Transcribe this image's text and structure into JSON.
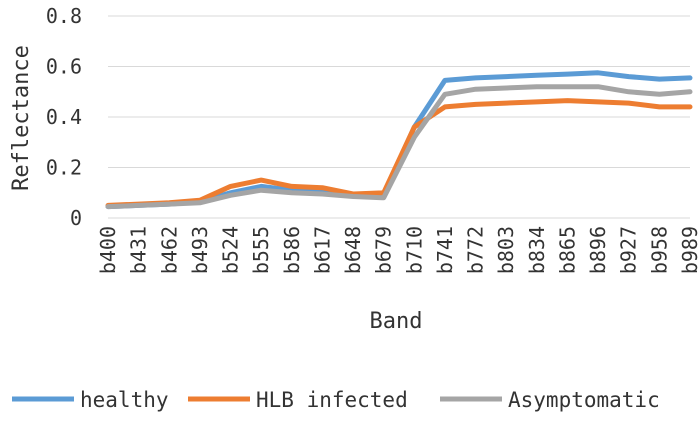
{
  "chart_data": {
    "type": "line",
    "xlabel": "Band",
    "ylabel": "Reflectance",
    "ylim": [
      0,
      0.8
    ],
    "yticks": [
      "0",
      "0.2",
      "0.4",
      "0.6",
      "0.8"
    ],
    "grid": "horizontal",
    "legend_position": "bottom",
    "x": [
      "b400",
      "b431",
      "b462",
      "b493",
      "b524",
      "b555",
      "b586",
      "b617",
      "b648",
      "b679",
      "b710",
      "b741",
      "b772",
      "b803",
      "b834",
      "b865",
      "b896",
      "b927",
      "b958",
      "b989"
    ],
    "series": [
      {
        "name": "healthy",
        "color": "#5B9BD5",
        "values": [
          0.045,
          0.05,
          0.055,
          0.065,
          0.1,
          0.125,
          0.11,
          0.105,
          0.09,
          0.09,
          0.36,
          0.545,
          0.555,
          0.56,
          0.565,
          0.57,
          0.575,
          0.56,
          0.55,
          0.555
        ]
      },
      {
        "name": "HLB infected",
        "color": "#ED7D31",
        "values": [
          0.05,
          0.055,
          0.06,
          0.07,
          0.125,
          0.15,
          0.125,
          0.12,
          0.095,
          0.1,
          0.36,
          0.44,
          0.45,
          0.455,
          0.46,
          0.465,
          0.46,
          0.455,
          0.44,
          0.44
        ]
      },
      {
        "name": "Asymptomatic",
        "color": "#A5A5A5",
        "values": [
          0.045,
          0.05,
          0.055,
          0.06,
          0.09,
          0.11,
          0.1,
          0.095,
          0.085,
          0.08,
          0.32,
          0.49,
          0.51,
          0.515,
          0.52,
          0.52,
          0.52,
          0.5,
          0.49,
          0.5
        ]
      }
    ]
  }
}
